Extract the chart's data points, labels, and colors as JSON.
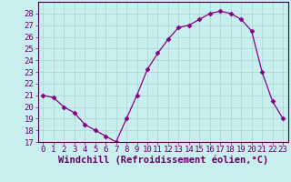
{
  "x": [
    0,
    1,
    2,
    3,
    4,
    5,
    6,
    7,
    8,
    9,
    10,
    11,
    12,
    13,
    14,
    15,
    16,
    17,
    18,
    19,
    20,
    21,
    22,
    23
  ],
  "y": [
    21.0,
    20.8,
    20.0,
    19.5,
    18.5,
    18.0,
    17.5,
    17.0,
    19.0,
    21.0,
    23.2,
    24.6,
    25.8,
    26.8,
    27.0,
    27.5,
    28.0,
    28.2,
    28.0,
    27.5,
    26.5,
    23.0,
    20.5,
    19.0
  ],
  "line_color": "#880088",
  "marker": "D",
  "marker_size": 2.5,
  "bg_color": "#c8eef0",
  "grid_color": "#a8d8c8",
  "xlabel": "Windchill (Refroidissement éolien,°C)",
  "xlabel_fontsize": 7.5,
  "tick_fontsize": 6.5,
  "ylim": [
    17,
    29
  ],
  "yticks": [
    17,
    18,
    19,
    20,
    21,
    22,
    23,
    24,
    25,
    26,
    27,
    28
  ],
  "xticks": [
    0,
    1,
    2,
    3,
    4,
    5,
    6,
    7,
    8,
    9,
    10,
    11,
    12,
    13,
    14,
    15,
    16,
    17,
    18,
    19,
    20,
    21,
    22,
    23
  ],
  "tick_label_color": "#660066",
  "axis_color": "#660066",
  "spine_color": "#440044"
}
